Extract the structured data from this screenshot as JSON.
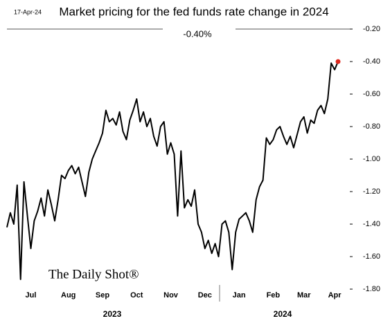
{
  "chart_data": {
    "type": "line",
    "title": "Market pricing for the fed funds rate change in 2024",
    "date_stamp": "17-Apr-24",
    "last_value_label": "-0.40%",
    "watermark": "The Daily Shot®",
    "year_labels": [
      "2023",
      "2024"
    ],
    "categories": [
      null,
      null,
      null,
      null,
      null,
      null,
      null,
      "Jul",
      null,
      null,
      null,
      null,
      null,
      null,
      null,
      null,
      null,
      null,
      "Aug",
      null,
      null,
      null,
      null,
      null,
      null,
      null,
      null,
      null,
      "Sep",
      null,
      null,
      null,
      null,
      null,
      null,
      null,
      null,
      null,
      "Oct",
      null,
      null,
      null,
      null,
      null,
      null,
      null,
      null,
      null,
      "Nov",
      null,
      null,
      null,
      null,
      null,
      null,
      null,
      null,
      null,
      "Dec",
      null,
      null,
      null,
      null,
      null,
      null,
      null,
      null,
      null,
      "Jan",
      null,
      null,
      null,
      null,
      null,
      null,
      null,
      null,
      null,
      "Feb",
      null,
      null,
      null,
      null,
      null,
      null,
      null,
      null,
      "Mar",
      null,
      null,
      null,
      null,
      null,
      null,
      null,
      null,
      "Apr",
      null
    ],
    "values": [
      -1.42,
      -1.33,
      -1.4,
      -1.16,
      -1.74,
      -1.14,
      -1.35,
      -1.55,
      -1.38,
      -1.32,
      -1.24,
      -1.35,
      -1.19,
      -1.28,
      -1.38,
      -1.25,
      -1.1,
      -1.12,
      -1.07,
      -1.04,
      -1.09,
      -1.05,
      -1.14,
      -1.23,
      -1.08,
      -1.0,
      -0.95,
      -0.9,
      -0.84,
      -0.7,
      -0.77,
      -0.75,
      -0.79,
      -0.71,
      -0.83,
      -0.88,
      -0.76,
      -0.7,
      -0.63,
      -0.77,
      -0.71,
      -0.8,
      -0.75,
      -0.86,
      -0.92,
      -0.8,
      -0.77,
      -0.97,
      -0.9,
      -0.97,
      -1.35,
      -0.95,
      -1.3,
      -1.25,
      -1.29,
      -1.19,
      -1.4,
      -1.45,
      -1.55,
      -1.5,
      -1.58,
      -1.52,
      -1.6,
      -1.4,
      -1.38,
      -1.45,
      -1.68,
      -1.45,
      -1.37,
      -1.35,
      -1.33,
      -1.38,
      -1.45,
      -1.25,
      -1.17,
      -1.13,
      -0.87,
      -0.91,
      -0.88,
      -0.82,
      -0.8,
      -0.86,
      -0.91,
      -0.86,
      -0.93,
      -0.85,
      -0.77,
      -0.74,
      -0.84,
      -0.76,
      -0.78,
      -0.7,
      -0.67,
      -0.72,
      -0.63,
      -0.41,
      -0.45,
      -0.4
    ],
    "color": "#000000",
    "marker_color": "#e0281e",
    "ylim": [
      -1.8,
      -0.2
    ],
    "yticks": [
      {
        "value": -0.2,
        "label": "-0.20"
      },
      {
        "value": -0.4,
        "label": "-0.40"
      },
      {
        "value": -0.6,
        "label": "-0.60"
      },
      {
        "value": -0.8,
        "label": "-0.80"
      },
      {
        "value": -1.0,
        "label": "-1.00"
      },
      {
        "value": -1.2,
        "label": "-1.20"
      },
      {
        "value": -1.4,
        "label": "-1.40"
      },
      {
        "value": -1.6,
        "label": "-1.60"
      },
      {
        "value": -1.8,
        "label": "-1.80"
      }
    ],
    "y_axis_side": "right"
  }
}
